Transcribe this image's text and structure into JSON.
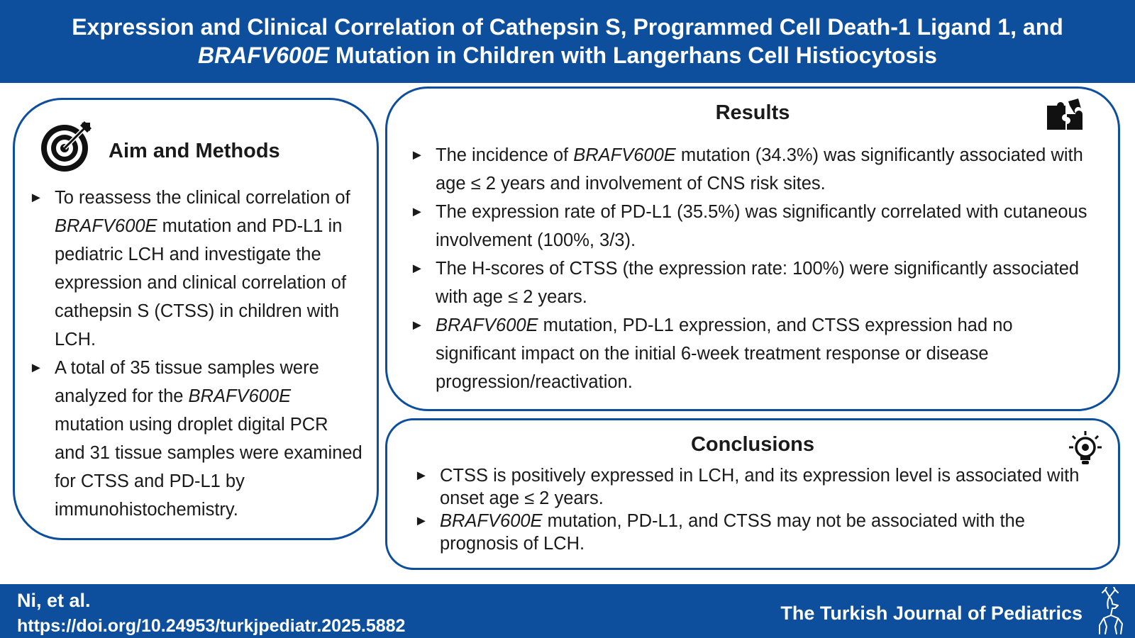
{
  "header": {
    "title_line1": "Expression and Clinical Correlation of Cathepsin S, Programmed Cell Death-1 Ligand 1, and",
    "title_line2_italic": "BRAFV600E",
    "title_line2_rest": " Mutation in Children with Langerhans Cell Histiocytosis"
  },
  "aim": {
    "title": "Aim and Methods",
    "icon": "target-icon",
    "bullets": [
      [
        "To reassess the clinical correlation of ",
        {
          "i": "BRAFV600E"
        },
        " mutation and PD-L1 in pediatric LCH and investigate the expression and clinical correlation of cathepsin S (CTSS) in children with LCH."
      ],
      [
        "A total of 35 tissue samples were analyzed for the ",
        {
          "i": "BRAFV600E"
        },
        " mutation using droplet digital PCR and 31 tissue samples were examined for CTSS and PD-L1 by immunohistochemistry."
      ]
    ]
  },
  "results": {
    "title": "Results",
    "icon": "puzzle-icon",
    "bullets": [
      [
        "The incidence of ",
        {
          "i": "BRAFV600E"
        },
        " mutation (34.3%) was significantly associated with age ≤ 2 years and involvement of CNS risk sites."
      ],
      [
        "The expression rate of PD-L1 (35.5%) was significantly correlated with cutaneous involvement (100%, 3/3)."
      ],
      [
        "The H-scores of CTSS (the expression rate: 100%) were significantly associated with age ≤ 2 years."
      ],
      [
        {
          "i": "BRAFV600E"
        },
        " mutation, PD-L1 expression, and CTSS expression had no significant impact on the initial 6-week treatment response or disease progression/reactivation."
      ]
    ]
  },
  "conclusions": {
    "title": "Conclusions",
    "icon": "lightbulb-icon",
    "bullets": [
      [
        "CTSS is positively expressed in LCH, and its expression level is associated with onset age ≤ 2 years."
      ],
      [
        {
          "i": "BRAFV600E"
        },
        " mutation, PD-L1, and CTSS may not be associated with the prognosis of LCH."
      ]
    ]
  },
  "footer": {
    "authors": "Ni, et al.",
    "doi": "https://doi.org/10.24953/turkjpediatr.2025.5882",
    "journal": "The Turkish Journal of Pediatrics",
    "logo_icon": "deer-logo-icon"
  },
  "colors": {
    "brand_blue": "#0d4f9c",
    "text": "#1a1a1a"
  },
  "bullet_marker": "►"
}
